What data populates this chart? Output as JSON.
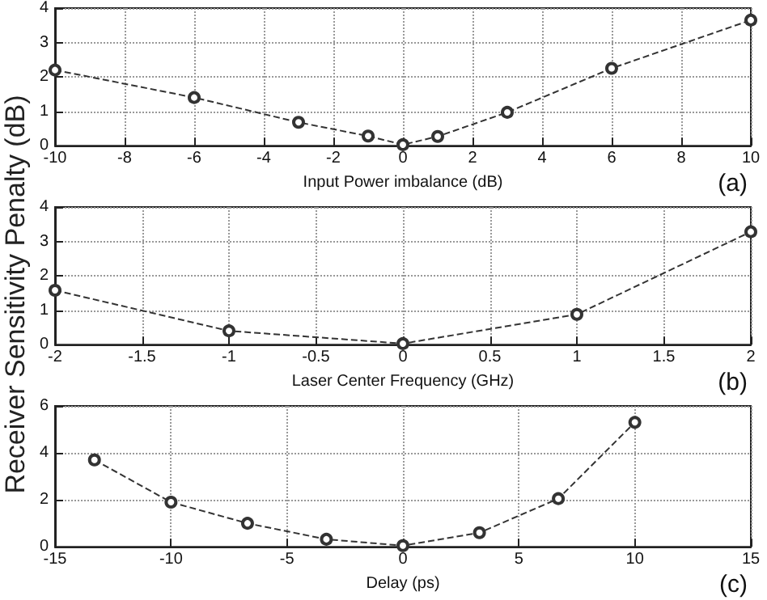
{
  "chart_data": [
    {
      "type": "line",
      "xlabel": "Input Power imbalance (dB)",
      "annotations": [
        "(a)"
      ],
      "x": [
        -10,
        -6,
        -3,
        -1,
        0,
        1,
        3,
        6,
        10
      ],
      "series": [
        {
          "color": "#333333",
          "values": [
            2.2,
            1.4,
            0.68,
            0.28,
            0.03,
            0.27,
            0.97,
            2.25,
            3.65
          ]
        }
      ],
      "xlim": [
        -10,
        10
      ],
      "xticks": [
        -10,
        -8,
        -6,
        -4,
        -2,
        0,
        2,
        4,
        6,
        8,
        10
      ],
      "ylim": [
        0,
        4
      ],
      "yticks": [
        0,
        1,
        2,
        3,
        4
      ],
      "grid": true,
      "marker": "circle",
      "line_style": "dashed"
    },
    {
      "type": "line",
      "xlabel": "Laser Center Frequency (GHz)",
      "ylabel": "Receiver Sensitivity Penalty (dB)",
      "annotations": [
        "(b)"
      ],
      "x": [
        -2,
        -1,
        0,
        1,
        2
      ],
      "series": [
        {
          "color": "#333333",
          "values": [
            1.58,
            0.4,
            0.03,
            0.88,
            3.28
          ]
        }
      ],
      "xlim": [
        -2,
        2
      ],
      "xticks": [
        -2,
        -1.5,
        -1,
        -0.5,
        0,
        0.5,
        1,
        1.5,
        2
      ],
      "ylim": [
        0,
        4
      ],
      "yticks": [
        0,
        1,
        2,
        3,
        4
      ],
      "grid": true,
      "marker": "circle",
      "line_style": "dashed"
    },
    {
      "type": "line",
      "xlabel": "Delay (ps)",
      "annotations": [
        "(c)"
      ],
      "x": [
        -13.3,
        -10,
        -6.7,
        -3.3,
        0,
        3.3,
        6.7,
        10
      ],
      "series": [
        {
          "color": "#333333",
          "values": [
            3.7,
            1.9,
            1.0,
            0.32,
            0.05,
            0.6,
            2.05,
            5.3
          ]
        }
      ],
      "xlim": [
        -15,
        15
      ],
      "xticks": [
        -15,
        -10,
        -5,
        0,
        5,
        10,
        15
      ],
      "ylim": [
        0,
        6
      ],
      "yticks": [
        0,
        2,
        4,
        6
      ],
      "grid": true,
      "marker": "circle",
      "line_style": "dashed"
    }
  ]
}
